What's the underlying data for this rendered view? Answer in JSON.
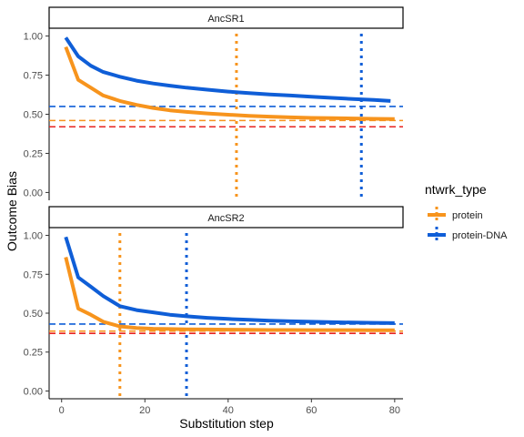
{
  "chart_data": {
    "type": "line",
    "xlabel": "Substitution step",
    "ylabel": "Outcome Bias",
    "xlim": [
      -3,
      82
    ],
    "ylim": [
      -0.05,
      1.05
    ],
    "x_ticks": [
      0,
      20,
      40,
      60,
      80
    ],
    "x_tick_labels": [
      "0",
      "20",
      "40",
      "60",
      "80"
    ],
    "y_ticks": [
      0,
      0.25,
      0.5,
      0.75,
      1.0
    ],
    "y_tick_labels": [
      "0.00",
      "0.25",
      "0.50",
      "0.75",
      "1.00"
    ],
    "legend": {
      "title": "ntwrk_type",
      "position": "right",
      "entries": [
        {
          "label": "protein",
          "color": "#F7941D"
        },
        {
          "label": "protein-DNA",
          "color": "#0F5ED7"
        }
      ]
    },
    "reference_line_color": "#E8231F",
    "panels": [
      {
        "strip_label": "AncSR1",
        "series": [
          {
            "name": "protein",
            "color": "#F7941D",
            "x": [
              1,
              4,
              7,
              10,
              14,
              18,
              22,
              26,
              30,
              35,
              40,
              45,
              50,
              55,
              60,
              65,
              70,
              75,
              80
            ],
            "y": [
              0.93,
              0.72,
              0.67,
              0.62,
              0.585,
              0.56,
              0.54,
              0.525,
              0.515,
              0.505,
              0.497,
              0.49,
              0.485,
              0.48,
              0.477,
              0.475,
              0.473,
              0.471,
              0.47
            ]
          },
          {
            "name": "protein-DNA",
            "color": "#0F5ED7",
            "x": [
              1,
              4,
              7,
              10,
              14,
              18,
              22,
              26,
              30,
              35,
              40,
              45,
              50,
              55,
              60,
              65,
              70,
              75,
              79
            ],
            "y": [
              0.99,
              0.87,
              0.81,
              0.77,
              0.74,
              0.715,
              0.697,
              0.683,
              0.67,
              0.657,
              0.645,
              0.635,
              0.627,
              0.62,
              0.612,
              0.605,
              0.598,
              0.592,
              0.585
            ]
          }
        ],
        "hlines": [
          {
            "series": "protein-DNA",
            "y": 0.55,
            "color": "#0F5ED7"
          },
          {
            "series": "protein",
            "y": 0.46,
            "color": "#F7941D"
          },
          {
            "series": "reference",
            "y": 0.42,
            "color": "#E8231F"
          }
        ],
        "vlines": [
          {
            "series": "protein",
            "x": 42,
            "color": "#F7941D"
          },
          {
            "series": "protein-DNA",
            "x": 72,
            "color": "#0F5ED7"
          }
        ]
      },
      {
        "strip_label": "AncSR2",
        "series": [
          {
            "name": "protein",
            "color": "#F7941D",
            "x": [
              1,
              4,
              7,
              10,
              14,
              18,
              22,
              26,
              30,
              35,
              40,
              45,
              50,
              55,
              60,
              65,
              70,
              75,
              80
            ],
            "y": [
              0.86,
              0.53,
              0.49,
              0.445,
              0.415,
              0.405,
              0.4,
              0.398,
              0.396,
              0.395,
              0.394,
              0.393,
              0.392,
              0.392,
              0.391,
              0.391,
              0.391,
              0.39,
              0.39
            ]
          },
          {
            "name": "protein-DNA",
            "color": "#0F5ED7",
            "x": [
              1,
              4,
              7,
              10,
              14,
              18,
              22,
              26,
              30,
              35,
              40,
              45,
              50,
              55,
              60,
              65,
              70,
              75,
              80
            ],
            "y": [
              0.99,
              0.73,
              0.67,
              0.61,
              0.545,
              0.52,
              0.505,
              0.49,
              0.48,
              0.47,
              0.463,
              0.457,
              0.452,
              0.448,
              0.445,
              0.442,
              0.44,
              0.438,
              0.436
            ]
          }
        ],
        "hlines": [
          {
            "series": "protein-DNA",
            "y": 0.43,
            "color": "#0F5ED7"
          },
          {
            "series": "protein",
            "y": 0.385,
            "color": "#F7941D"
          },
          {
            "series": "reference",
            "y": 0.37,
            "color": "#E8231F"
          }
        ],
        "vlines": [
          {
            "series": "protein",
            "x": 14,
            "color": "#F7941D"
          },
          {
            "series": "protein-DNA",
            "x": 30,
            "color": "#0F5ED7"
          }
        ]
      }
    ]
  }
}
